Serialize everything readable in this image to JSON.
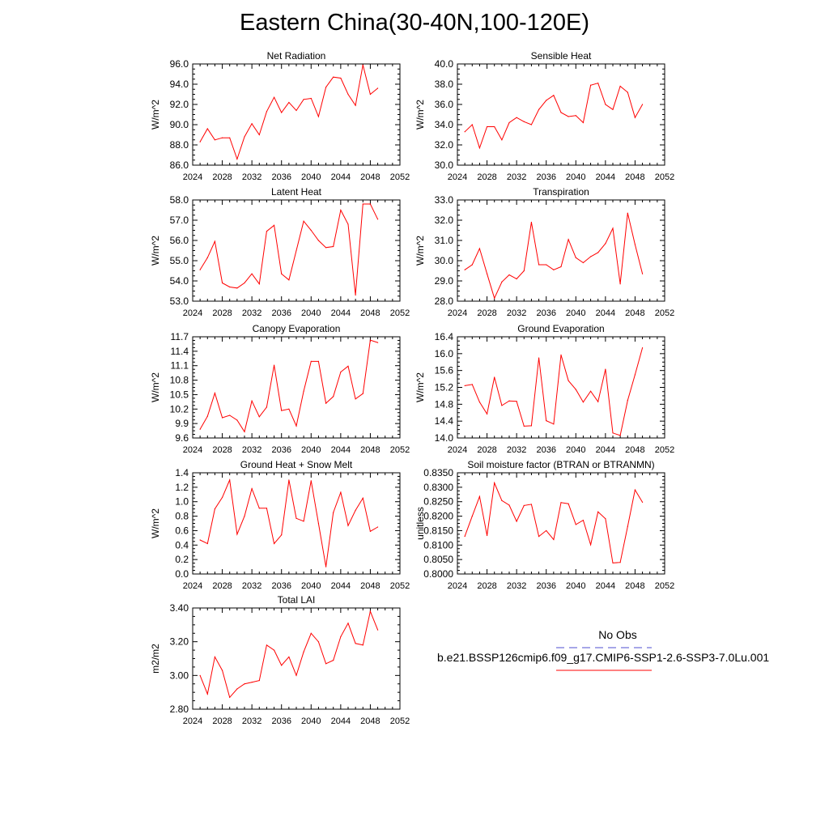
{
  "page": {
    "title": "Eastern China(30-40N,100-120E)"
  },
  "legend": {
    "entries": [
      {
        "label": "No Obs",
        "color": "#4f4fd0",
        "style": "dashed"
      },
      {
        "label": "b.e21.BSSP126cmip6.f09_g17.CMIP6-SSP1-2.6-SSP3-7.0Lu.001",
        "color": "#ff0000",
        "style": "solid"
      }
    ]
  },
  "chart_data": [
    {
      "type": "line",
      "title": "Net Radiation",
      "ylabel": "W/m^2",
      "xlim": [
        2024,
        2052
      ],
      "ylim": [
        86.0,
        96.0
      ],
      "xticks": [
        "2024",
        "2028",
        "2032",
        "2036",
        "2040",
        "2044",
        "2048",
        "2052"
      ],
      "yticks": [
        "86.0",
        "88.0",
        "90.0",
        "92.0",
        "94.0",
        "96.0"
      ],
      "series": [
        {
          "color": "#ff0000",
          "x": [
            2025,
            2026,
            2027,
            2028,
            2029,
            2030,
            2031,
            2032,
            2033,
            2034,
            2035,
            2036,
            2037,
            2038,
            2039,
            2040,
            2041,
            2042,
            2043,
            2044,
            2045,
            2046,
            2047,
            2048,
            2049
          ],
          "y": [
            88.3,
            89.6,
            88.5,
            88.7,
            88.7,
            86.6,
            88.8,
            90.1,
            89.0,
            91.3,
            92.7,
            91.2,
            92.2,
            91.4,
            92.5,
            92.6,
            90.8,
            93.7,
            94.7,
            94.6,
            93.0,
            91.9,
            95.9,
            93.0,
            93.6
          ]
        }
      ]
    },
    {
      "type": "line",
      "title": "Sensible Heat",
      "ylabel": "W/m^2",
      "xlim": [
        2024,
        2052
      ],
      "ylim": [
        30.0,
        40.0
      ],
      "xticks": [
        "2024",
        "2028",
        "2032",
        "2036",
        "2040",
        "2044",
        "2048",
        "2052"
      ],
      "yticks": [
        "30.0",
        "32.0",
        "34.0",
        "36.0",
        "38.0",
        "40.0"
      ],
      "series": [
        {
          "color": "#ff0000",
          "x": [
            2025,
            2026,
            2027,
            2028,
            2029,
            2030,
            2031,
            2032,
            2033,
            2034,
            2035,
            2036,
            2037,
            2038,
            2039,
            2040,
            2041,
            2042,
            2043,
            2044,
            2045,
            2046,
            2047,
            2048,
            2049
          ],
          "y": [
            33.3,
            34.0,
            31.7,
            33.8,
            33.8,
            32.5,
            34.2,
            34.7,
            34.3,
            34.0,
            35.5,
            36.4,
            36.9,
            35.2,
            34.8,
            34.9,
            34.2,
            37.9,
            38.1,
            36.0,
            35.5,
            37.8,
            37.2,
            34.7,
            36.0
          ]
        }
      ]
    },
    {
      "type": "line",
      "title": "Latent Heat",
      "ylabel": "W/m^2",
      "xlim": [
        2024,
        2052
      ],
      "ylim": [
        53.0,
        58.0
      ],
      "xticks": [
        "2024",
        "2028",
        "2032",
        "2036",
        "2040",
        "2044",
        "2048",
        "2052"
      ],
      "yticks": [
        "53.0",
        "54.0",
        "55.0",
        "56.0",
        "57.0",
        "58.0"
      ],
      "series": [
        {
          "color": "#ff0000",
          "x": [
            2025,
            2026,
            2027,
            2028,
            2029,
            2030,
            2031,
            2032,
            2033,
            2034,
            2035,
            2036,
            2037,
            2038,
            2039,
            2040,
            2041,
            2042,
            2043,
            2044,
            2045,
            2046,
            2047,
            2048,
            2049
          ],
          "y": [
            54.55,
            55.15,
            55.95,
            53.9,
            53.7,
            53.65,
            53.9,
            54.35,
            53.85,
            56.45,
            56.75,
            54.35,
            54.05,
            55.5,
            56.95,
            56.5,
            56.0,
            55.65,
            55.7,
            57.5,
            56.8,
            53.3,
            57.8,
            57.8,
            57.05
          ]
        }
      ]
    },
    {
      "type": "line",
      "title": "Transpiration",
      "ylabel": "W/m^2",
      "xlim": [
        2024,
        2052
      ],
      "ylim": [
        28.0,
        33.0
      ],
      "xticks": [
        "2024",
        "2028",
        "2032",
        "2036",
        "2040",
        "2044",
        "2048",
        "2052"
      ],
      "yticks": [
        "28.0",
        "29.0",
        "30.0",
        "31.0",
        "32.0",
        "33.0"
      ],
      "series": [
        {
          "color": "#ff0000",
          "x": [
            2025,
            2026,
            2027,
            2028,
            2029,
            2030,
            2031,
            2032,
            2033,
            2034,
            2035,
            2036,
            2037,
            2038,
            2039,
            2040,
            2041,
            2042,
            2043,
            2044,
            2045,
            2046,
            2047,
            2048,
            2049
          ],
          "y": [
            29.55,
            29.8,
            30.6,
            29.35,
            28.15,
            28.95,
            29.3,
            29.1,
            29.5,
            31.9,
            29.8,
            29.8,
            29.55,
            29.7,
            31.05,
            30.15,
            29.9,
            30.2,
            30.4,
            30.85,
            31.6,
            28.85,
            32.35,
            30.8,
            29.35
          ]
        }
      ]
    },
    {
      "type": "line",
      "title": "Canopy Evaporation",
      "ylabel": "W/m^2",
      "xlim": [
        2024,
        2052
      ],
      "ylim": [
        9.6,
        11.7
      ],
      "xticks": [
        "2024",
        "2028",
        "2032",
        "2036",
        "2040",
        "2044",
        "2048",
        "2052"
      ],
      "yticks": [
        "9.6",
        "9.9",
        "10.2",
        "10.5",
        "10.8",
        "11.1",
        "11.4",
        "11.7"
      ],
      "series": [
        {
          "color": "#ff0000",
          "x": [
            2025,
            2026,
            2027,
            2028,
            2029,
            2030,
            2031,
            2032,
            2033,
            2034,
            2035,
            2036,
            2037,
            2038,
            2039,
            2040,
            2041,
            2042,
            2043,
            2044,
            2045,
            2046,
            2047,
            2048,
            2049
          ],
          "y": [
            9.78,
            10.05,
            10.53,
            10.02,
            10.07,
            9.97,
            9.73,
            10.37,
            10.04,
            10.24,
            11.11,
            10.17,
            10.2,
            9.85,
            10.57,
            11.19,
            11.19,
            10.32,
            10.46,
            10.97,
            11.09,
            10.41,
            10.52,
            11.63,
            11.58
          ]
        }
      ]
    },
    {
      "type": "line",
      "title": "Ground Evaporation",
      "ylabel": "W/m^2",
      "xlim": [
        2024,
        2052
      ],
      "ylim": [
        14.0,
        16.4
      ],
      "xticks": [
        "2024",
        "2028",
        "2032",
        "2036",
        "2040",
        "2044",
        "2048",
        "2052"
      ],
      "yticks": [
        "14.0",
        "14.4",
        "14.8",
        "15.2",
        "15.6",
        "16.0",
        "16.4"
      ],
      "series": [
        {
          "color": "#ff0000",
          "x": [
            2025,
            2026,
            2027,
            2028,
            2029,
            2030,
            2031,
            2032,
            2033,
            2034,
            2035,
            2036,
            2037,
            2038,
            2039,
            2040,
            2041,
            2042,
            2043,
            2044,
            2045,
            2046,
            2047,
            2048,
            2049
          ],
          "y": [
            15.24,
            15.27,
            14.85,
            14.57,
            15.44,
            14.77,
            14.88,
            14.87,
            14.28,
            14.29,
            15.9,
            14.41,
            14.33,
            15.97,
            15.36,
            15.15,
            14.85,
            15.11,
            14.86,
            15.63,
            14.12,
            14.06,
            14.89,
            15.5,
            16.14
          ]
        }
      ]
    },
    {
      "type": "line",
      "title": "Ground Heat + Snow Melt",
      "ylabel": "W/m^2",
      "xlim": [
        2024,
        2052
      ],
      "ylim": [
        0.0,
        1.4
      ],
      "xticks": [
        "2024",
        "2028",
        "2032",
        "2036",
        "2040",
        "2044",
        "2048",
        "2052"
      ],
      "yticks": [
        "0.0",
        "0.2",
        "0.4",
        "0.6",
        "0.8",
        "1.0",
        "1.2",
        "1.4"
      ],
      "series": [
        {
          "color": "#ff0000",
          "x": [
            2025,
            2026,
            2027,
            2028,
            2029,
            2030,
            2031,
            2032,
            2033,
            2034,
            2035,
            2036,
            2037,
            2038,
            2039,
            2040,
            2041,
            2042,
            2043,
            2044,
            2045,
            2046,
            2047,
            2048,
            2049
          ],
          "y": [
            0.47,
            0.42,
            0.9,
            1.06,
            1.3,
            0.55,
            0.8,
            1.18,
            0.91,
            0.91,
            0.42,
            0.54,
            1.3,
            0.77,
            0.73,
            1.29,
            0.7,
            0.1,
            0.85,
            1.13,
            0.67,
            0.88,
            1.05,
            0.59,
            0.65
          ]
        }
      ]
    },
    {
      "type": "line",
      "title": "Soil moisture factor (BTRAN or BTRANMN)",
      "ylabel": "unitless",
      "xlim": [
        2024,
        2052
      ],
      "ylim": [
        0.8,
        0.835
      ],
      "xticks": [
        "2024",
        "2028",
        "2032",
        "2036",
        "2040",
        "2044",
        "2048",
        "2052"
      ],
      "yticks": [
        "0.8000",
        "0.8050",
        "0.8100",
        "0.8150",
        "0.8200",
        "0.8250",
        "0.8300",
        "0.8350"
      ],
      "series": [
        {
          "color": "#ff0000",
          "x": [
            2025,
            2026,
            2027,
            2028,
            2029,
            2030,
            2031,
            2032,
            2033,
            2034,
            2035,
            2036,
            2037,
            2038,
            2039,
            2040,
            2041,
            2042,
            2043,
            2044,
            2045,
            2046,
            2047,
            2048,
            2049
          ],
          "y": [
            0.813,
            0.82,
            0.8268,
            0.8133,
            0.8315,
            0.8254,
            0.8238,
            0.8182,
            0.8237,
            0.8241,
            0.813,
            0.815,
            0.8119,
            0.8247,
            0.8243,
            0.8171,
            0.8186,
            0.8101,
            0.8215,
            0.8191,
            0.8038,
            0.804,
            0.8164,
            0.8291,
            0.8248
          ]
        }
      ]
    },
    {
      "type": "line",
      "title": "Total LAI",
      "ylabel": "m2/m2",
      "xlim": [
        2024,
        2052
      ],
      "ylim": [
        2.8,
        3.4
      ],
      "xticks": [
        "2024",
        "2028",
        "2032",
        "2036",
        "2040",
        "2044",
        "2048",
        "2052"
      ],
      "yticks": [
        "2.80",
        "3.00",
        "3.20",
        "3.40"
      ],
      "series": [
        {
          "color": "#ff0000",
          "x": [
            2025,
            2026,
            2027,
            2028,
            2029,
            2030,
            2031,
            2032,
            2033,
            2034,
            2035,
            2036,
            2037,
            2038,
            2039,
            2040,
            2041,
            2042,
            2043,
            2044,
            2045,
            2046,
            2047,
            2048,
            2049
          ],
          "y": [
            3.0,
            2.89,
            3.11,
            3.03,
            2.87,
            2.92,
            2.95,
            2.96,
            2.97,
            3.18,
            3.15,
            3.06,
            3.11,
            3.0,
            3.14,
            3.25,
            3.2,
            3.07,
            3.09,
            3.23,
            3.31,
            3.19,
            3.18,
            3.38,
            3.27
          ]
        }
      ]
    }
  ]
}
